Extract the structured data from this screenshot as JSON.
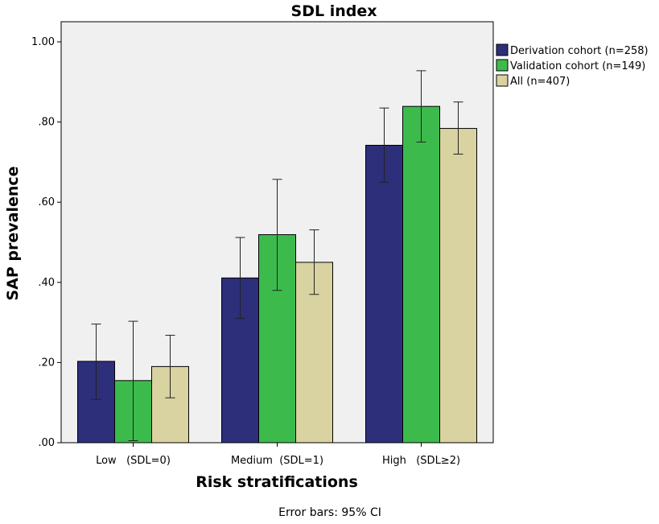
{
  "chart_data": {
    "type": "bar",
    "title": "SDL index",
    "xlabel": "Risk stratifications",
    "ylabel": "SAP prevalence",
    "ylim": [
      0,
      1.0
    ],
    "yticks": [
      ".00",
      ".20",
      ".40",
      ".60",
      ".80",
      "1.00"
    ],
    "ytick_values": [
      0,
      0.2,
      0.4,
      0.6,
      0.8,
      1.0
    ],
    "categories": [
      "Low   (SDL=0)",
      "Medium  (SDL=1)",
      "High   (SDL≥2)"
    ],
    "series": [
      {
        "name": "Derivation cohort (n=258)",
        "color": "#2d2f7a",
        "values": [
          0.203,
          0.411,
          0.742
        ],
        "ci_low": [
          0.108,
          0.31,
          0.65
        ],
        "ci_high": [
          0.296,
          0.512,
          0.835
        ]
      },
      {
        "name": "Validation cohort (n=149)",
        "color": "#3cbb4c",
        "values": [
          0.155,
          0.519,
          0.839
        ],
        "ci_low": [
          0.005,
          0.38,
          0.75
        ],
        "ci_high": [
          0.303,
          0.657,
          0.928
        ]
      },
      {
        "name": "All (n=407)",
        "color": "#d8d3a0",
        "values": [
          0.19,
          0.45,
          0.784
        ],
        "ci_low": [
          0.112,
          0.37,
          0.72
        ],
        "ci_high": [
          0.268,
          0.531,
          0.85
        ]
      }
    ],
    "legend_position": "top-right",
    "grid": false,
    "footnote": "Error bars: 95% CI"
  }
}
